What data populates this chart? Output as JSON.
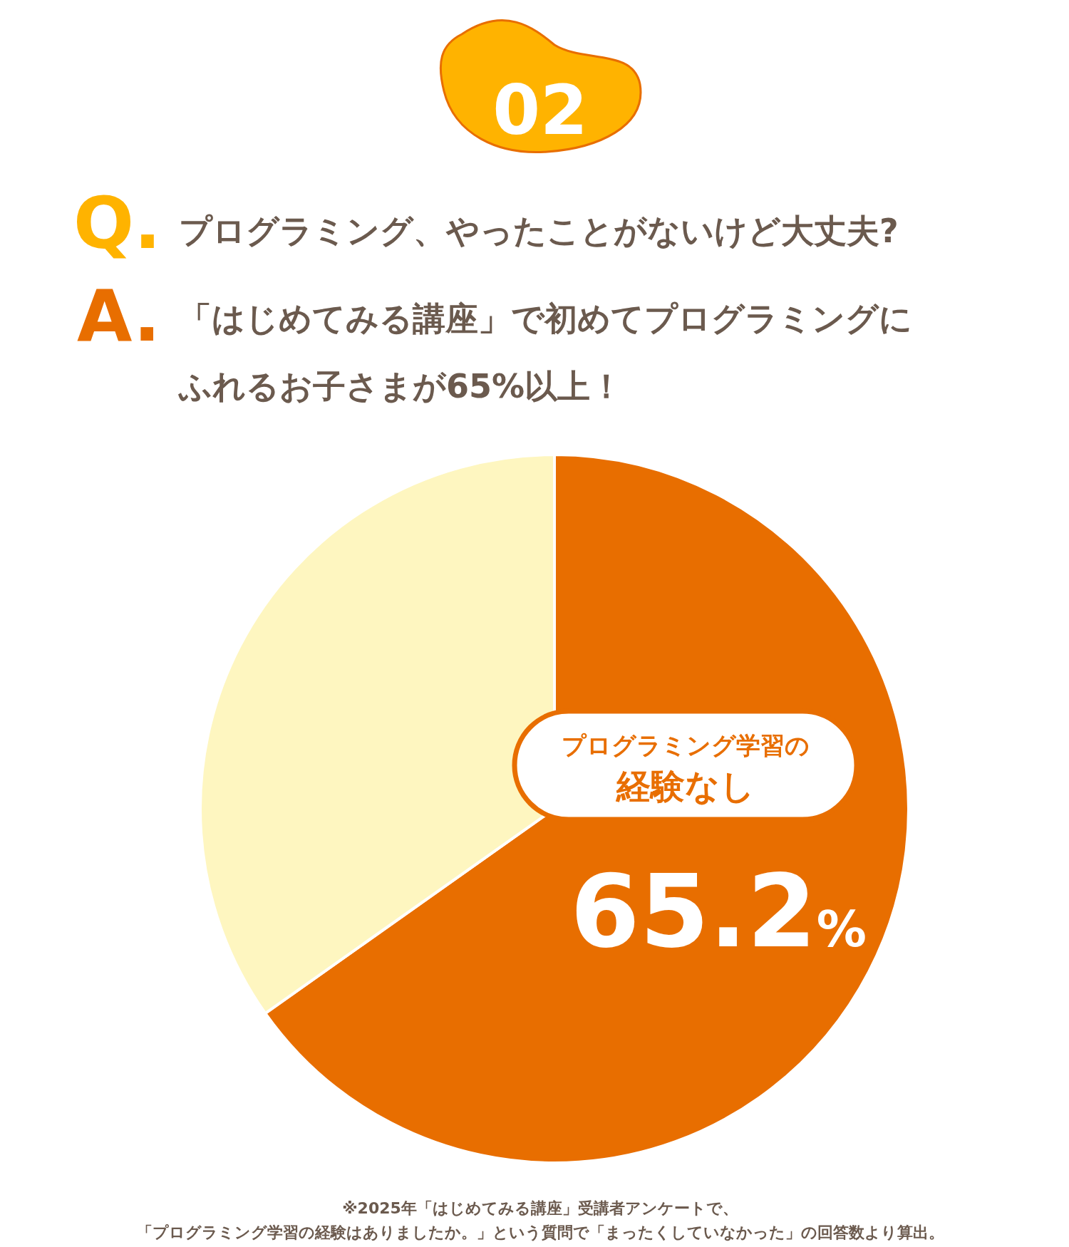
{
  "chart_data": {
    "type": "pie",
    "title": "プログラミング、やったことがないけど大丈夫?",
    "subtitle": "「はじめてみる講座」で初めてプログラミングにふれるお子さまが65%以上！",
    "categories": [
      "プログラミング学習の経験なし",
      null
    ],
    "values": [
      65.2,
      34.8
    ],
    "colors": [
      "#e86e00",
      "#fef6c0"
    ],
    "value_labels": [
      "65.2%",
      null
    ],
    "annotations": [
      "02",
      "Q.",
      "A.",
      "※2025年「はじめてみる講座」受講者アンケートで、「プログラミング学習の経験はありましたか。」という質問で「まったくしていなかった」の回答数より算出。"
    ]
  }
}
